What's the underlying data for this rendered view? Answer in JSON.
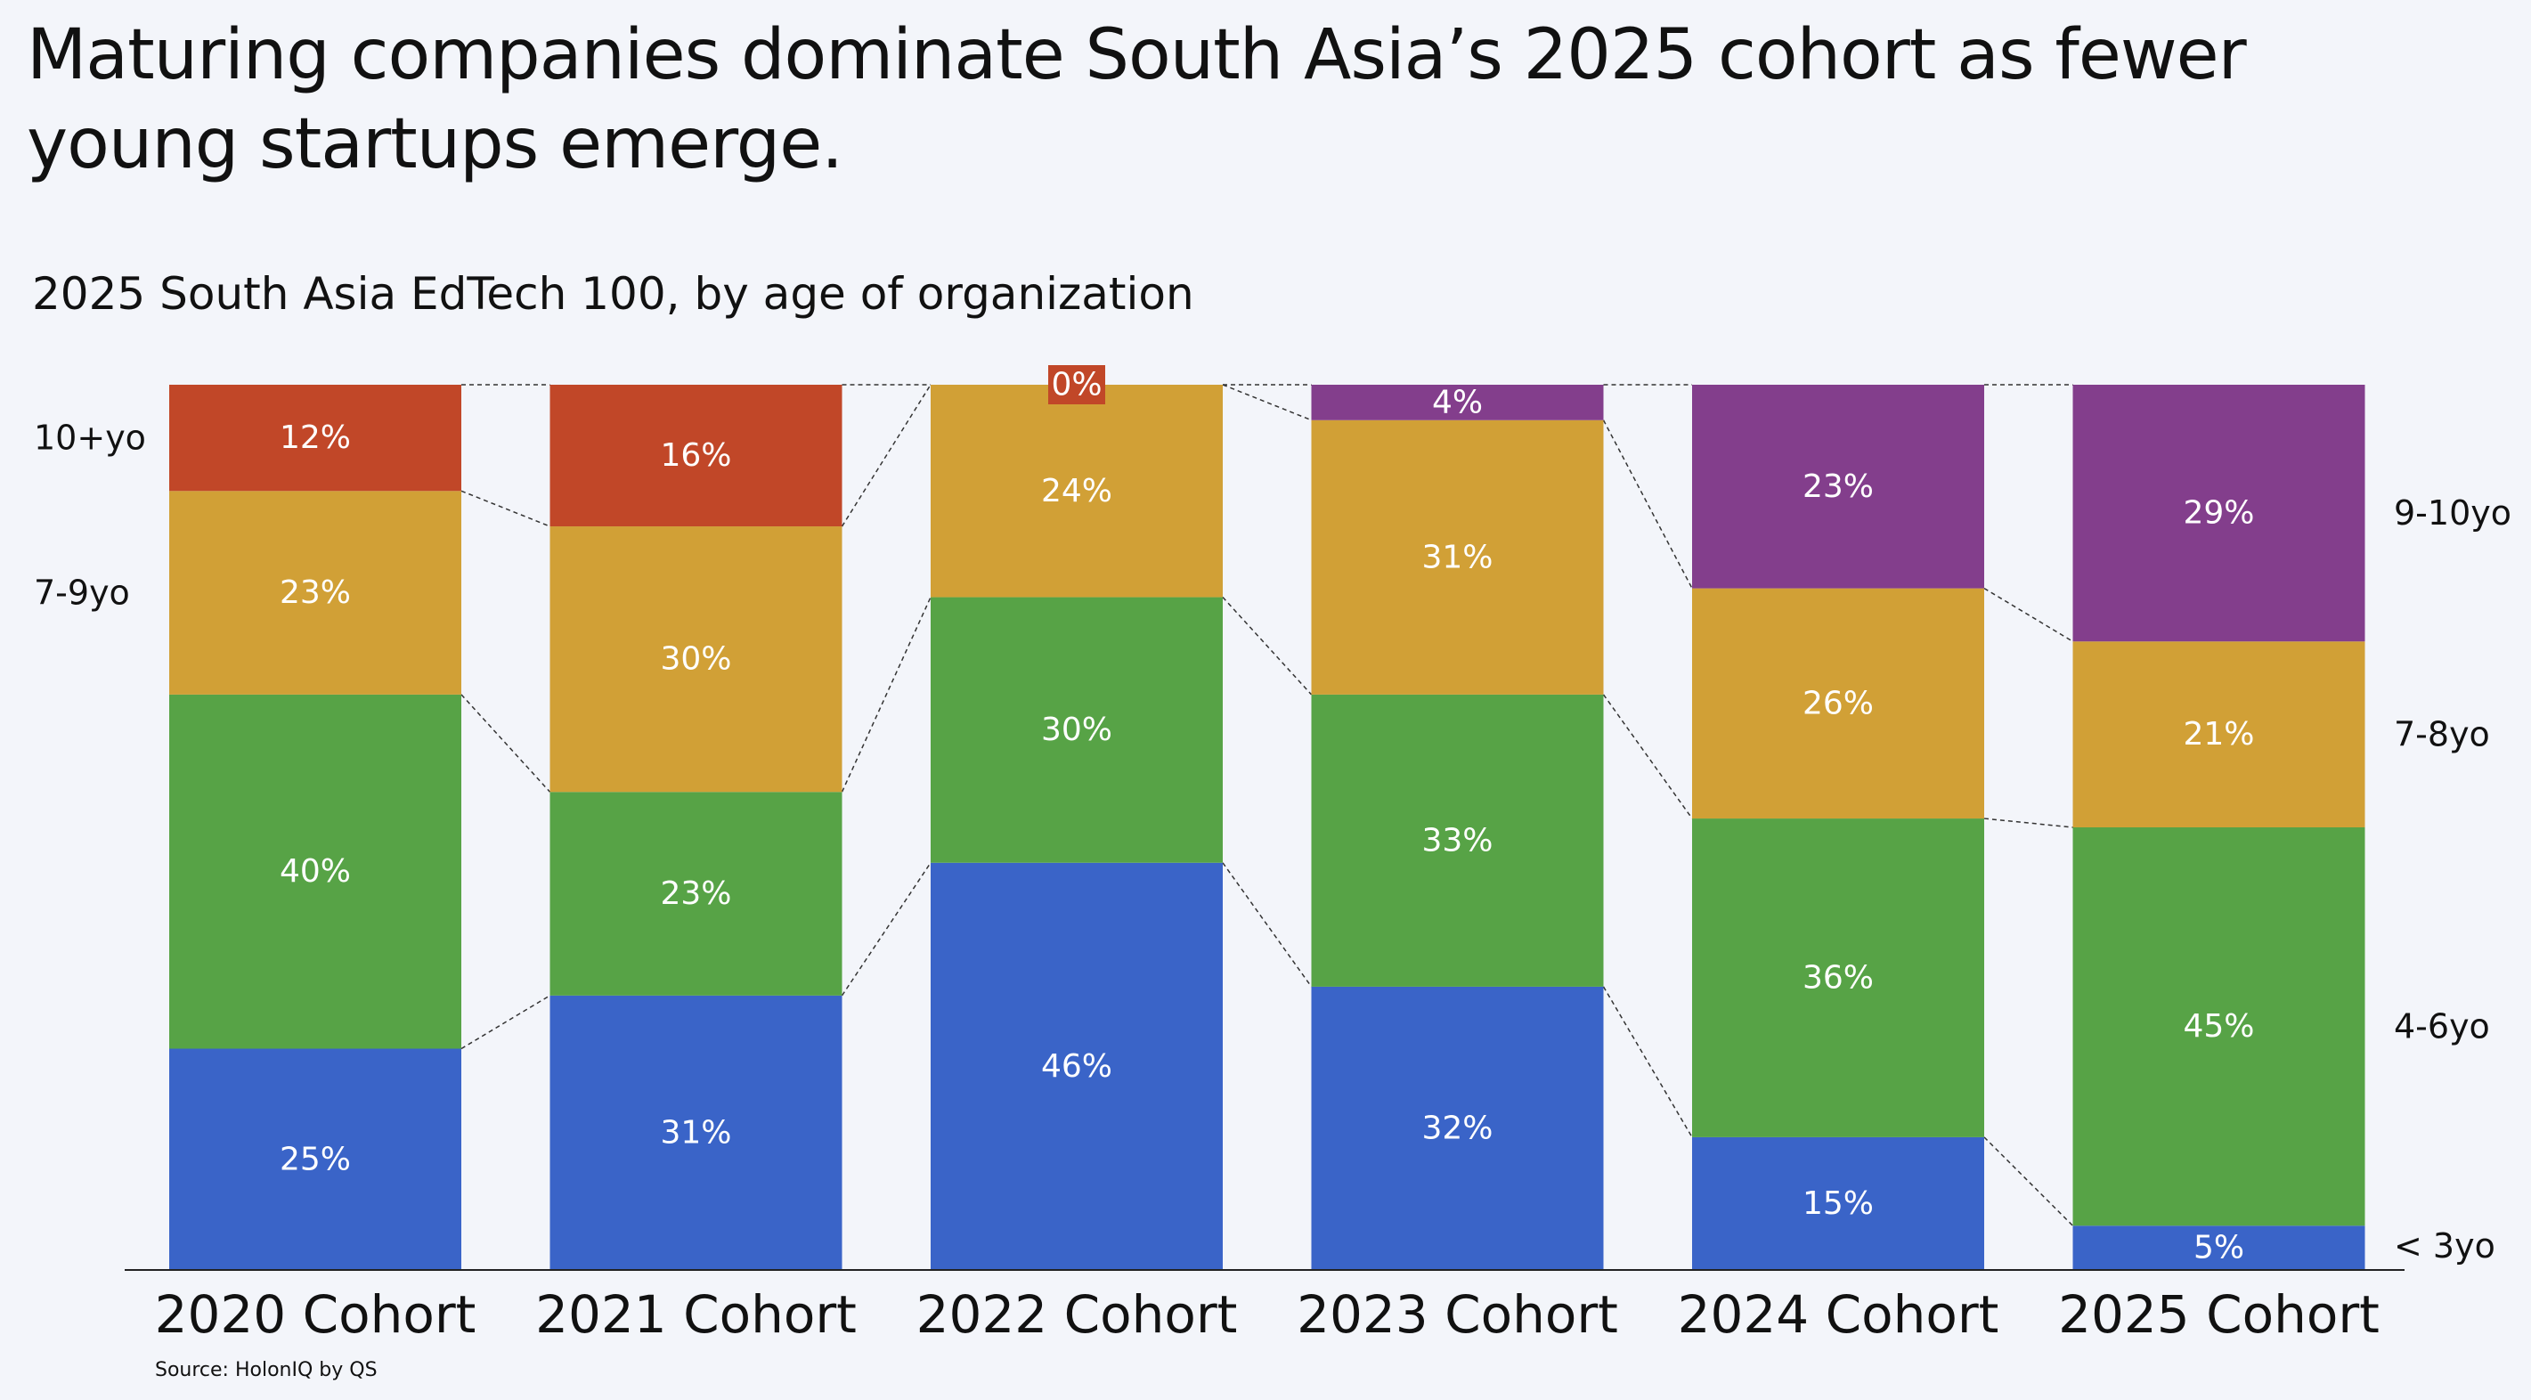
{
  "title": "Maturing companies dominate South Asia’s 2025 cohort as fewer young startups emerge.",
  "subtitle": "2025 South Asia EdTech 100, by age of organization",
  "source": "Source: HolonIQ by QS",
  "colors": {
    "under3": "#3a64c8",
    "four_six": "#57a346",
    "seven_nine": "#d1a036",
    "ten_plus": "#c14728",
    "nine_ten": "#833e8c",
    "background": "#f3f5fa"
  },
  "chart_data": {
    "type": "bar",
    "stacked": true,
    "normalized": true,
    "categories": [
      "2020 Cohort",
      "2021 Cohort",
      "2022 Cohort",
      "2023 Cohort",
      "2024 Cohort",
      "2025 Cohort"
    ],
    "ylim": [
      0,
      100
    ],
    "legend_left": [
      "10+yo",
      "7-9yo"
    ],
    "legend_right": [
      "9-10yo",
      "7-8yo",
      "4-6yo",
      "< 3yo"
    ],
    "stacks": [
      {
        "category": "2020 Cohort",
        "segments": [
          {
            "label": "25%",
            "value": 25,
            "color_key": "under3"
          },
          {
            "label": "40%",
            "value": 40,
            "color_key": "four_six"
          },
          {
            "label": "23%",
            "value": 23,
            "color_key": "seven_nine"
          },
          {
            "label": "12%",
            "value": 12,
            "color_key": "ten_plus"
          }
        ]
      },
      {
        "category": "2021 Cohort",
        "segments": [
          {
            "label": "31%",
            "value": 31,
            "color_key": "under3"
          },
          {
            "label": "23%",
            "value": 23,
            "color_key": "four_six"
          },
          {
            "label": "30%",
            "value": 30,
            "color_key": "seven_nine"
          },
          {
            "label": "16%",
            "value": 16,
            "color_key": "ten_plus"
          }
        ]
      },
      {
        "category": "2022 Cohort",
        "segments": [
          {
            "label": "46%",
            "value": 46,
            "color_key": "under3"
          },
          {
            "label": "30%",
            "value": 30,
            "color_key": "four_six"
          },
          {
            "label": "24%",
            "value": 24,
            "color_key": "seven_nine"
          },
          {
            "label": "0%",
            "value": 0,
            "color_key": "ten_plus"
          }
        ]
      },
      {
        "category": "2023 Cohort",
        "segments": [
          {
            "label": "32%",
            "value": 32,
            "color_key": "under3"
          },
          {
            "label": "33%",
            "value": 33,
            "color_key": "four_six"
          },
          {
            "label": "31%",
            "value": 31,
            "color_key": "seven_nine"
          },
          {
            "label": "4%",
            "value": 4,
            "color_key": "nine_ten"
          }
        ]
      },
      {
        "category": "2024 Cohort",
        "segments": [
          {
            "label": "15%",
            "value": 15,
            "color_key": "under3"
          },
          {
            "label": "36%",
            "value": 36,
            "color_key": "four_six"
          },
          {
            "label": "26%",
            "value": 26,
            "color_key": "seven_nine"
          },
          {
            "label": "23%",
            "value": 23,
            "color_key": "nine_ten"
          }
        ]
      },
      {
        "category": "2025 Cohort",
        "segments": [
          {
            "label": "5%",
            "value": 5,
            "color_key": "under3"
          },
          {
            "label": "45%",
            "value": 45,
            "color_key": "four_six"
          },
          {
            "label": "21%",
            "value": 21,
            "color_key": "seven_nine"
          },
          {
            "label": "29%",
            "value": 29,
            "color_key": "nine_ten"
          }
        ]
      }
    ]
  }
}
